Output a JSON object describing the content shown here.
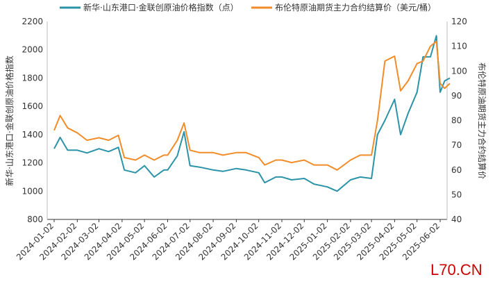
{
  "chart_data": {
    "type": "line",
    "title": "",
    "legend": {
      "placement": "top",
      "entries": [
        "新华·山东港口·金联创原油价格指数（点）",
        "布伦特原油期货主力合约结算价（美元/桶）"
      ]
    },
    "ylabel_left": "新华·山东港口·金联创原油价格指数",
    "ylabel_right": "布伦特原油期货主力合约结算价",
    "y_left": {
      "range": [
        800,
        2200
      ],
      "ticks": [
        "800",
        "1000",
        "1200",
        "1400",
        "1600",
        "1800",
        "2000",
        "2200"
      ]
    },
    "y_right": {
      "range": [
        40,
        120
      ],
      "ticks": [
        "40",
        "50",
        "60",
        "70",
        "80",
        "90",
        "100",
        "110",
        "120"
      ]
    },
    "x_ticks": [
      "2024-01-02",
      "2024-02-02",
      "2024-03-02",
      "2024-04-02",
      "2024-05-02",
      "2024-06-02",
      "2024-07-02",
      "2024-08-02",
      "2024-09-02",
      "2024-10-02",
      "2024-11-02",
      "2024-12-02",
      "2025-01-02",
      "2025-02-02",
      "2025-03-02",
      "2025-04-02",
      "2025-05-02",
      "2025-06-02"
    ],
    "grid": false,
    "series": [
      {
        "name": "新华·山东港口·金联创原油价格指数（点）",
        "axis": "left",
        "color": "#2a93a7",
        "x": [
          "2024-01-02",
          "2024-01-10",
          "2024-01-20",
          "2024-02-02",
          "2024-02-15",
          "2024-03-02",
          "2024-03-15",
          "2024-03-28",
          "2024-04-05",
          "2024-04-20",
          "2024-05-02",
          "2024-05-15",
          "2024-05-28",
          "2024-06-02",
          "2024-06-15",
          "2024-06-24",
          "2024-07-02",
          "2024-07-15",
          "2024-08-02",
          "2024-08-15",
          "2024-09-02",
          "2024-09-15",
          "2024-10-02",
          "2024-10-10",
          "2024-10-25",
          "2024-11-02",
          "2024-11-15",
          "2024-12-02",
          "2024-12-15",
          "2025-01-02",
          "2025-01-15",
          "2025-02-02",
          "2025-02-15",
          "2025-03-02",
          "2025-03-10",
          "2025-03-20",
          "2025-04-02",
          "2025-04-10",
          "2025-04-20",
          "2025-05-02",
          "2025-05-10",
          "2025-05-20",
          "2025-05-28",
          "2025-06-02",
          "2025-06-08",
          "2025-06-15"
        ],
        "values": [
          1300,
          1380,
          1290,
          1290,
          1270,
          1300,
          1280,
          1310,
          1150,
          1130,
          1180,
          1100,
          1150,
          1150,
          1250,
          1420,
          1180,
          1170,
          1150,
          1140,
          1160,
          1150,
          1130,
          1060,
          1100,
          1100,
          1080,
          1090,
          1050,
          1030,
          1000,
          1080,
          1100,
          1090,
          1400,
          1500,
          1650,
          1400,
          1550,
          1700,
          1950,
          1950,
          2100,
          1700,
          1780,
          1800
        ]
      },
      {
        "name": "布伦特原油期货主力合约结算价（美元/桶）",
        "axis": "right",
        "color": "#f28c28",
        "x": [
          "2024-01-02",
          "2024-01-10",
          "2024-01-20",
          "2024-02-02",
          "2024-02-15",
          "2024-03-02",
          "2024-03-15",
          "2024-03-28",
          "2024-04-05",
          "2024-04-20",
          "2024-05-02",
          "2024-05-15",
          "2024-05-28",
          "2024-06-02",
          "2024-06-15",
          "2024-06-24",
          "2024-07-02",
          "2024-07-15",
          "2024-08-02",
          "2024-08-15",
          "2024-09-02",
          "2024-09-15",
          "2024-10-02",
          "2024-10-10",
          "2024-10-25",
          "2024-11-02",
          "2024-11-15",
          "2024-12-02",
          "2024-12-15",
          "2025-01-02",
          "2025-01-15",
          "2025-02-02",
          "2025-02-15",
          "2025-03-02",
          "2025-03-10",
          "2025-03-20",
          "2025-04-02",
          "2025-04-10",
          "2025-04-20",
          "2025-05-02",
          "2025-05-10",
          "2025-05-20",
          "2025-05-28",
          "2025-06-02",
          "2025-06-08",
          "2025-06-15"
        ],
        "values": [
          76,
          82,
          77,
          75,
          72,
          73,
          72,
          74,
          65,
          64,
          66,
          64,
          66,
          66,
          72,
          79,
          68,
          67,
          67,
          66,
          67,
          67,
          65,
          62,
          64,
          64,
          63,
          64,
          62,
          62,
          60,
          64,
          66,
          66,
          80,
          104,
          106,
          92,
          96,
          103,
          104,
          110,
          112,
          95,
          93,
          95
        ]
      }
    ]
  },
  "watermark": "L70.CN"
}
